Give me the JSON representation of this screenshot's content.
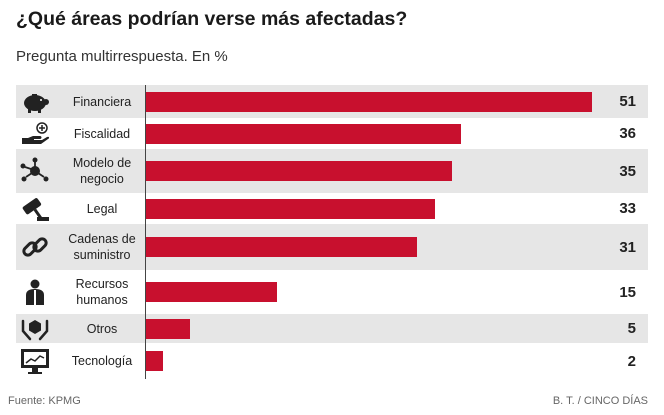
{
  "header": {
    "title": "¿Qué áreas podrían verse más afectadas?",
    "subtitle": "Pregunta multirrespuesta. En %"
  },
  "footer": {
    "source": "Fuente: KPMG",
    "credit": "B. T. / CINCO DÍAS"
  },
  "chart_data": {
    "type": "bar",
    "orientation": "horizontal",
    "categories": [
      "Financiera",
      "Fiscalidad",
      "Modelo de\nnegocio",
      "Legal",
      "Cadenas de\nsuministro",
      "Recursos\nhumanos",
      "Otros",
      "Tecnología"
    ],
    "values": [
      51,
      36,
      35,
      33,
      31,
      15,
      5,
      2
    ],
    "value_labels": [
      "51",
      "36",
      "35",
      "33",
      "31",
      "15",
      "5",
      "2"
    ],
    "icons": [
      "piggy-bank-icon",
      "hand-coin-icon",
      "network-icon",
      "gavel-icon",
      "chain-link-icon",
      "people-icon",
      "hands-hexagon-icon",
      "computer-monitor-icon"
    ],
    "bar_color": "#c8102e",
    "row_shade_color": "#e6e6e6",
    "xlim": [
      0,
      51
    ],
    "grid": false,
    "legend": "none"
  }
}
